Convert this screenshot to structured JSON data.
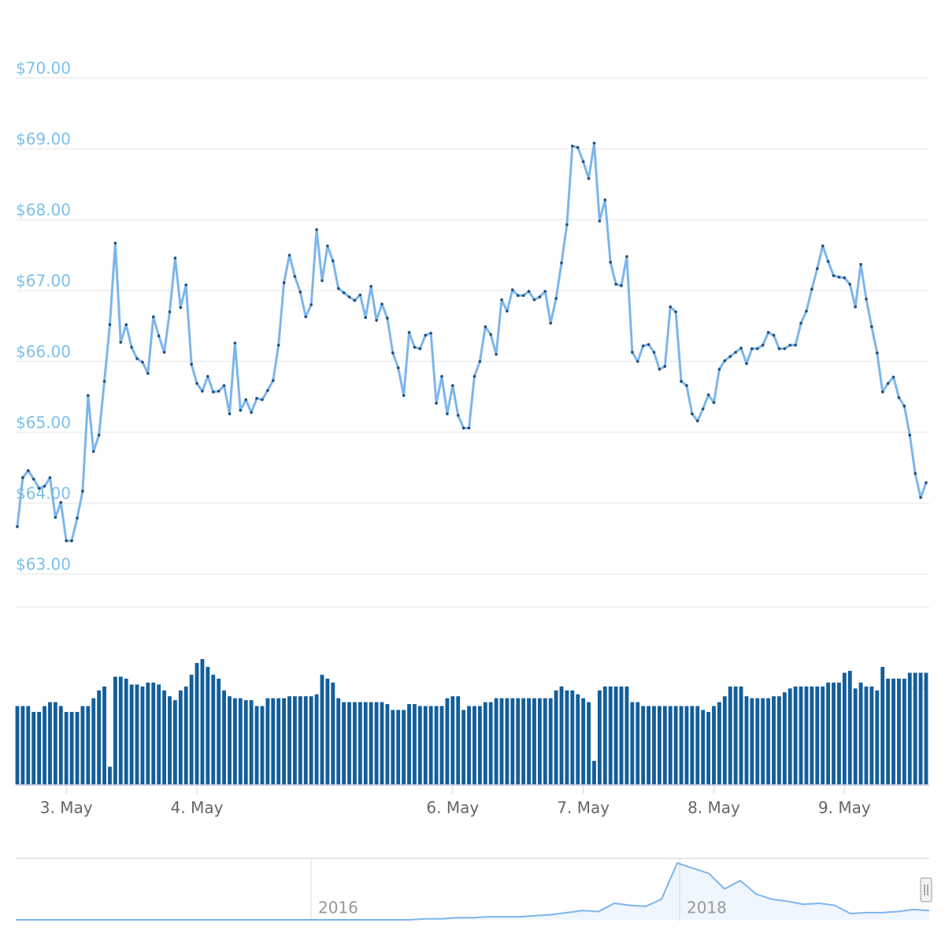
{
  "chart_data": {
    "type": "line",
    "categories": [
      null,
      null,
      null,
      null,
      null,
      null,
      null,
      null,
      null,
      "3. May",
      null,
      null,
      null,
      null,
      null,
      null,
      null,
      null,
      null,
      null,
      null,
      null,
      null,
      null,
      null,
      null,
      null,
      null,
      null,
      null,
      null,
      null,
      null,
      "4. May",
      null,
      null,
      null,
      null,
      null,
      null,
      null,
      null,
      null,
      null,
      null,
      null,
      null,
      null,
      null,
      null,
      null,
      null,
      null,
      null,
      null,
      null,
      null,
      null,
      null,
      null,
      null,
      null,
      null,
      null,
      null,
      null,
      null,
      null,
      null,
      null,
      null,
      null,
      null,
      null,
      null,
      null,
      null,
      null,
      null,
      null,
      "6. May",
      null,
      null,
      null,
      null,
      null,
      null,
      null,
      null,
      null,
      null,
      null,
      null,
      null,
      null,
      null,
      null,
      null,
      null,
      null,
      null,
      null,
      null,
      null,
      "7. May",
      null,
      null,
      null,
      null,
      null,
      null,
      null,
      null,
      null,
      null,
      null,
      null,
      null,
      null,
      null,
      null,
      null,
      null,
      null,
      null,
      null,
      null,
      null,
      "8. May",
      null,
      null,
      null,
      null,
      null,
      null,
      null,
      null,
      null,
      null,
      null,
      null,
      null,
      null,
      null,
      null,
      null,
      null,
      null,
      null,
      null,
      null,
      null,
      "9. May",
      null,
      null,
      null,
      null,
      null,
      null,
      null,
      null,
      null,
      null,
      null,
      null,
      null,
      null,
      null
    ],
    "series": [
      {
        "color": "#7cb5ec",
        "values": [
          63.67,
          64.36,
          64.46,
          64.34,
          64.21,
          64.24,
          64.36,
          63.8,
          64.01,
          63.47,
          63.47,
          63.79,
          64.17,
          65.52,
          64.73,
          64.96,
          65.72,
          66.52,
          67.67,
          66.27,
          66.52,
          66.2,
          66.04,
          65.99,
          65.83,
          66.63,
          66.36,
          66.13,
          66.7,
          67.46,
          66.76,
          67.08,
          65.96,
          65.69,
          65.58,
          65.79,
          65.57,
          65.58,
          65.66,
          65.26,
          66.26,
          65.31,
          65.46,
          65.28,
          65.48,
          65.46,
          65.59,
          65.73,
          66.23,
          67.11,
          67.5,
          67.2,
          66.98,
          66.63,
          66.8,
          67.86,
          67.14,
          67.63,
          67.42,
          67.03,
          66.97,
          66.91,
          66.86,
          66.94,
          66.62,
          67.06,
          66.58,
          66.81,
          66.61,
          66.12,
          65.91,
          65.52,
          66.41,
          66.2,
          66.18,
          66.37,
          66.4,
          65.41,
          65.79,
          65.26,
          65.66,
          65.24,
          65.06,
          65.06,
          65.79,
          66.0,
          66.49,
          66.38,
          66.1,
          66.87,
          66.71,
          67.01,
          66.93,
          66.93,
          66.99,
          66.87,
          66.91,
          66.99,
          66.54,
          66.89,
          67.39,
          67.93,
          69.04,
          69.02,
          68.82,
          68.58,
          69.08,
          67.98,
          68.28,
          67.4,
          67.09,
          67.07,
          67.48,
          66.13,
          66.0,
          66.22,
          66.24,
          66.13,
          65.89,
          65.93,
          66.77,
          66.7,
          65.72,
          65.66,
          65.26,
          65.16,
          65.33,
          65.53,
          65.42,
          65.89,
          66.01,
          66.07,
          66.13,
          66.19,
          65.97,
          66.18,
          66.18,
          66.23,
          66.41,
          66.37,
          66.18,
          66.18,
          66.23,
          66.23,
          66.54,
          66.71,
          67.02,
          67.31,
          67.63,
          67.41,
          67.21,
          67.19,
          67.18,
          67.09,
          66.77,
          67.37,
          66.88,
          66.49,
          66.12,
          65.57,
          65.69,
          65.78,
          65.49,
          65.37,
          64.96,
          64.42,
          64.08,
          64.29
        ]
      },
      {
        "color": "#135e9a",
        "axis": "y2",
        "values": [
          20,
          20,
          20,
          18.5,
          18.5,
          20,
          21,
          21,
          20,
          18.5,
          18.5,
          18.5,
          20,
          20,
          22,
          24,
          25,
          4.5,
          27.5,
          27.5,
          27,
          25.5,
          25.5,
          25,
          26,
          26,
          25.5,
          24,
          22.5,
          21.5,
          24,
          25,
          28,
          31,
          32,
          30,
          28,
          27,
          24,
          22.5,
          22,
          22,
          21.5,
          21.5,
          20,
          20,
          22,
          22,
          22,
          22,
          22.5,
          22.5,
          22.5,
          22.5,
          22.5,
          23,
          28,
          27,
          26,
          22,
          21,
          21,
          21,
          21,
          21,
          21,
          21,
          21,
          20.5,
          19,
          19,
          19,
          20.5,
          20.5,
          20,
          20,
          20,
          20,
          20,
          22,
          22.5,
          22.5,
          19,
          20,
          20,
          20,
          21,
          21,
          22,
          22,
          22,
          22,
          22,
          22,
          22,
          22,
          22,
          22,
          22,
          24,
          25,
          24,
          24,
          23,
          22,
          21,
          6,
          24,
          25,
          25,
          25,
          25,
          25,
          21,
          21,
          20,
          20,
          20,
          20,
          20,
          20,
          20,
          20,
          20,
          20,
          20,
          19,
          18.5,
          20,
          21,
          22.5,
          25,
          25,
          25,
          22.5,
          22,
          22,
          22,
          22,
          22.5,
          22.5,
          23.5,
          24.5,
          25,
          25,
          25,
          25,
          25,
          25,
          26,
          26,
          26,
          28.5,
          29,
          24.5,
          26,
          25,
          25,
          24,
          30,
          27,
          27,
          27,
          27,
          28.5,
          28.5,
          28.5,
          28.5
        ]
      }
    ],
    "ylim": [
      62.5,
      70.5
    ],
    "yticks": [
      {
        "value": 63,
        "label": "$63.00"
      },
      {
        "value": 64,
        "label": "$64.00"
      },
      {
        "value": 65,
        "label": "$65.00"
      },
      {
        "value": 66,
        "label": "$66.00"
      },
      {
        "value": 67,
        "label": "$67.00"
      },
      {
        "value": 68,
        "label": "$68.00"
      },
      {
        "value": 69,
        "label": "$69.00"
      },
      {
        "value": 70,
        "label": "$70.00"
      }
    ],
    "y2lim": [
      0,
      35
    ],
    "y2ticks": [
      25
    ],
    "grid": true,
    "navigator": {
      "type": "area",
      "color": "#7cb5ec",
      "labels": [
        "2016",
        "2018"
      ],
      "values": [
        0,
        0,
        0,
        0,
        0,
        0,
        0,
        0,
        0,
        0,
        0,
        0,
        0,
        0,
        0,
        0,
        0,
        0,
        0,
        0,
        0,
        0,
        0,
        0,
        0,
        0,
        1,
        1,
        2,
        2,
        3,
        3,
        3,
        4,
        5,
        7,
        9,
        8,
        16,
        14,
        13,
        20,
        55,
        50,
        45,
        30,
        38,
        25,
        20,
        18,
        15,
        16,
        14,
        6,
        7,
        7,
        8,
        10,
        9
      ]
    }
  }
}
